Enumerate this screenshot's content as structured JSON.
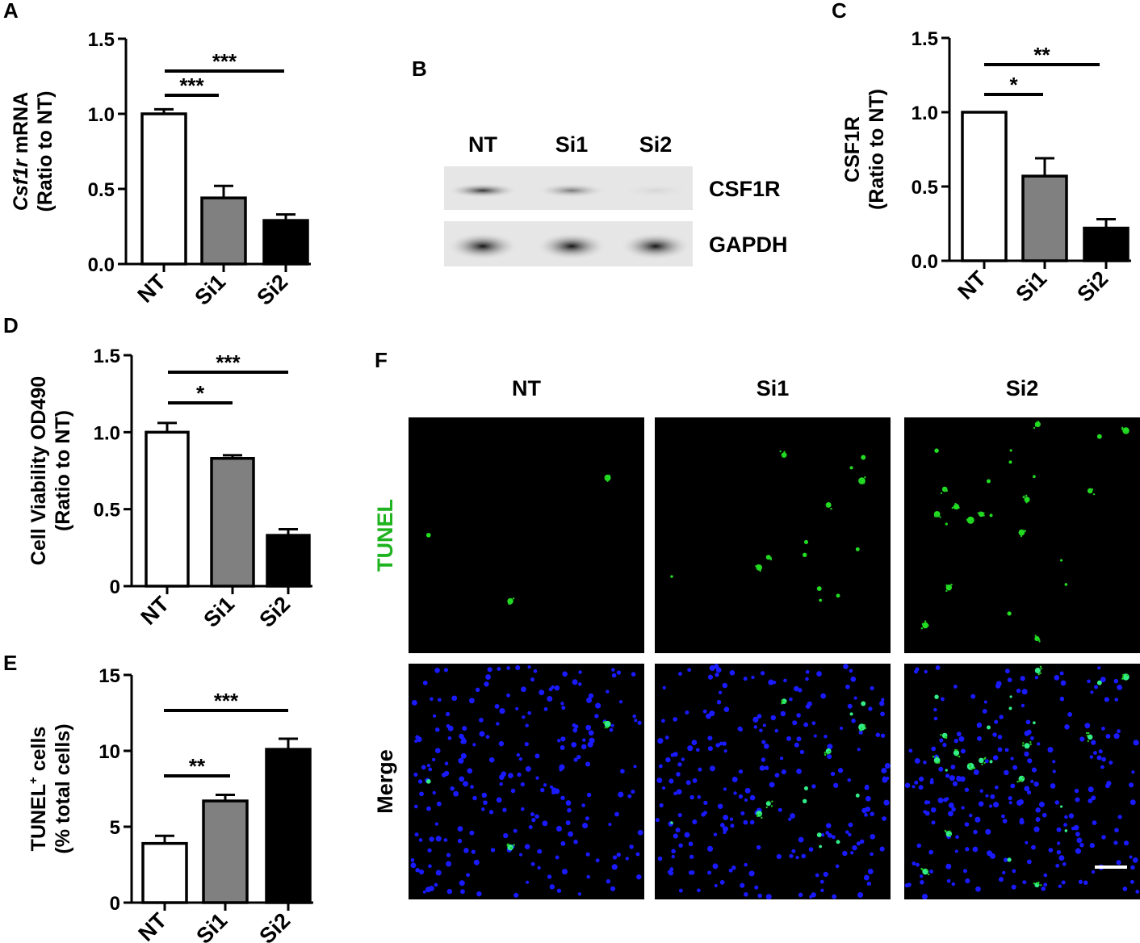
{
  "panels": {
    "A": {
      "letter": "A"
    },
    "B": {
      "letter": "B"
    },
    "C": {
      "letter": "C"
    },
    "D": {
      "letter": "D"
    },
    "E": {
      "letter": "E"
    },
    "F": {
      "letter": "F"
    }
  },
  "chart_data": [
    {
      "id": "A",
      "type": "bar",
      "categories": [
        "NT",
        "Si1",
        "Si2"
      ],
      "values": [
        1.0,
        0.44,
        0.29
      ],
      "errors": [
        0.03,
        0.08,
        0.04
      ],
      "colors": [
        "#ffffff",
        "#808080",
        "#000000"
      ],
      "ylim": [
        0,
        1.5
      ],
      "yticks": [
        "0.0",
        "0.5",
        "1.0",
        "1.5"
      ],
      "ylabel_italic": "Csf1r",
      "ylabel_rest": " mRNA",
      "ylabel_line2": "(Ratio to NT)",
      "significance": [
        {
          "from": "NT",
          "to": "Si1",
          "label": "***"
        },
        {
          "from": "NT",
          "to": "Si2",
          "label": "***"
        }
      ]
    },
    {
      "id": "C",
      "type": "bar",
      "categories": [
        "NT",
        "Si1",
        "Si2"
      ],
      "values": [
        1.0,
        0.57,
        0.22
      ],
      "errors": [
        0.0,
        0.12,
        0.06
      ],
      "colors": [
        "#ffffff",
        "#808080",
        "#000000"
      ],
      "ylim": [
        0,
        1.5
      ],
      "yticks": [
        "0.0",
        "0.5",
        "1.0",
        "1.5"
      ],
      "ylabel_line1": "CSF1R",
      "ylabel_line2": "(Ratio to NT)",
      "significance": [
        {
          "from": "NT",
          "to": "Si1",
          "label": "*"
        },
        {
          "from": "NT",
          "to": "Si2",
          "label": "**"
        }
      ]
    },
    {
      "id": "D",
      "type": "bar",
      "categories": [
        "NT",
        "Si1",
        "Si2"
      ],
      "values": [
        1.0,
        0.83,
        0.33
      ],
      "errors": [
        0.06,
        0.02,
        0.04
      ],
      "colors": [
        "#ffffff",
        "#808080",
        "#000000"
      ],
      "ylim": [
        0,
        1.5
      ],
      "yticks": [
        "0",
        "0.5",
        "1.0",
        "1.5"
      ],
      "ylabel_line1": "Cell Viability OD490",
      "ylabel_line2": "(Ratio to NT)",
      "significance": [
        {
          "from": "NT",
          "to": "Si1",
          "label": "*"
        },
        {
          "from": "NT",
          "to": "Si2",
          "label": "***"
        }
      ]
    },
    {
      "id": "E",
      "type": "bar",
      "categories": [
        "NT",
        "Si1",
        "Si2"
      ],
      "values": [
        3.9,
        6.7,
        10.1
      ],
      "errors": [
        0.5,
        0.4,
        0.7
      ],
      "colors": [
        "#ffffff",
        "#808080",
        "#000000"
      ],
      "ylim": [
        0,
        15
      ],
      "yticks": [
        "0",
        "5",
        "10",
        "15"
      ],
      "ylabel_line1": "TUNEL",
      "ylabel_sup": "+",
      "ylabel_rest": " cells",
      "ylabel_line2": "(% total cells)",
      "significance": [
        {
          "from": "NT",
          "to": "Si1",
          "label": "**"
        },
        {
          "from": "NT",
          "to": "Si2",
          "label": "***"
        }
      ]
    }
  ],
  "western_blot": {
    "lanes": [
      "NT",
      "Si1",
      "Si2"
    ],
    "bands": [
      {
        "name": "CSF1R",
        "intensity": [
          0.85,
          0.6,
          0.15
        ]
      },
      {
        "name": "GAPDH",
        "intensity": [
          1.0,
          1.0,
          1.0
        ]
      }
    ]
  },
  "microscopy": {
    "columns": [
      "NT",
      "Si1",
      "Si2"
    ],
    "rows": [
      {
        "label": "TUNEL",
        "color": "#1fb31f"
      },
      {
        "label": "Merge",
        "color": "#000000"
      }
    ],
    "apoptotic_counts": [
      3,
      14,
      24
    ]
  }
}
